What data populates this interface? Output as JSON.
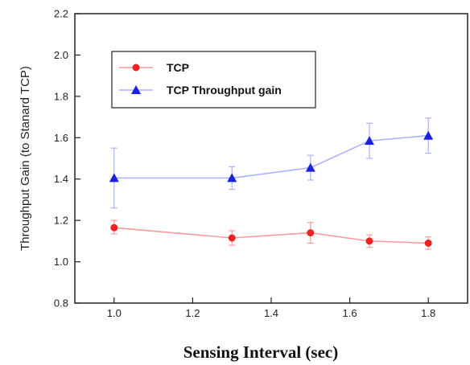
{
  "chart_data": {
    "type": "line",
    "title": "",
    "xlabel": "Sensing Interval (sec)",
    "ylabel": "Throughput Gain (to Stanard TCP)",
    "xlim": [
      0.9,
      1.9
    ],
    "ylim": [
      0.8,
      2.2
    ],
    "xticks": [
      1.0,
      1.2,
      1.4,
      1.6,
      1.8
    ],
    "xtick_labels": [
      "1.0",
      "1.2",
      "1.4",
      "1.6",
      "1.8"
    ],
    "yticks": [
      0.8,
      1.0,
      1.2,
      1.4,
      1.6,
      1.8,
      2.0,
      2.2
    ],
    "ytick_labels": [
      "0.8",
      "1.0",
      "1.2",
      "1.4",
      "1.6",
      "1.8",
      "2.0",
      "2.2"
    ],
    "grid": false,
    "legend_position": "top-left",
    "series": [
      {
        "name": "TCP",
        "color": "#ff9a9a",
        "marker_color": "#ee2222",
        "marker": "circle",
        "x": [
          1.0,
          1.3,
          1.5,
          1.65,
          1.8
        ],
        "y": [
          1.165,
          1.115,
          1.14,
          1.1,
          1.09
        ],
        "err_low": [
          0.03,
          0.035,
          0.05,
          0.03,
          0.03
        ],
        "err_high": [
          0.035,
          0.035,
          0.05,
          0.03,
          0.03
        ]
      },
      {
        "name": "TCP Throughput gain",
        "color": "#aab2ff",
        "marker_color": "#1a22dd",
        "marker": "triangle",
        "x": [
          1.0,
          1.3,
          1.5,
          1.65,
          1.8
        ],
        "y": [
          1.405,
          1.405,
          1.455,
          1.585,
          1.61
        ],
        "err_low": [
          0.145,
          0.055,
          0.06,
          0.085,
          0.085
        ],
        "err_high": [
          0.145,
          0.055,
          0.06,
          0.085,
          0.085
        ]
      }
    ]
  }
}
